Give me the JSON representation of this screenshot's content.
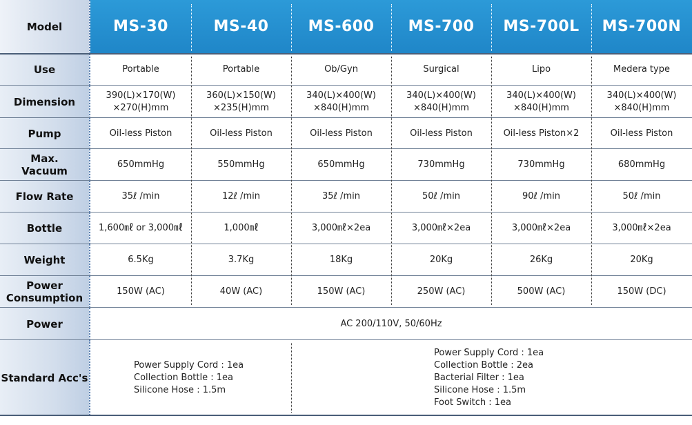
{
  "table": {
    "header_label": "Model",
    "models": [
      "MS-30",
      "MS-40",
      "MS-600",
      "MS-700",
      "MS-700L",
      "MS-700N"
    ],
    "rows": [
      {
        "label": "Use",
        "values": [
          "Portable",
          "Portable",
          "Ob/Gyn",
          "Surgical",
          "Lipo",
          "Medera type"
        ]
      },
      {
        "label": "Dimension",
        "values": [
          "390(L)×170(W)\n×270(H)mm",
          "360(L)×150(W)\n×235(H)mm",
          "340(L)×400(W)\n×840(H)mm",
          "340(L)×400(W)\n×840(H)mm",
          "340(L)×400(W)\n×840(H)mm",
          "340(L)×400(W)\n×840(H)mm"
        ]
      },
      {
        "label": "Pump",
        "values": [
          "Oil-less Piston",
          "Oil-less Piston",
          "Oil-less Piston",
          "Oil-less Piston",
          "Oil-less Piston×2",
          "Oil-less Piston"
        ]
      },
      {
        "label": "Max.\nVacuum",
        "values": [
          "650mmHg",
          "550mmHg",
          "650mmHg",
          "730mmHg",
          "730mmHg",
          "680mmHg"
        ]
      },
      {
        "label": "Flow Rate",
        "values": [
          "35ℓ /min",
          "12ℓ /min",
          "35ℓ /min",
          "50ℓ /min",
          "90ℓ /min",
          "50ℓ /min"
        ]
      },
      {
        "label": "Bottle",
        "values": [
          "1,600㎖ or 3,000㎖",
          "1,000㎖",
          "3,000㎖×2ea",
          "3,000㎖×2ea",
          "3,000㎖×2ea",
          "3,000㎖×2ea"
        ]
      },
      {
        "label": "Weight",
        "values": [
          "6.5Kg",
          "3.7Kg",
          "18Kg",
          "20Kg",
          "26Kg",
          "20Kg"
        ]
      },
      {
        "label": "Power\nConsumption",
        "values": [
          "150W (AC)",
          "40W (AC)",
          "150W (AC)",
          "250W (AC)",
          "500W (AC)",
          "150W (DC)"
        ]
      }
    ],
    "power": {
      "label": "Power",
      "value": "AC 200/110V, 50/60Hz"
    },
    "standard_acc": {
      "label": "Standard Acc's",
      "group1": [
        "Power Supply Cord : 1ea",
        "Collection Bottle : 1ea",
        "Silicone Hose : 1.5m"
      ],
      "group2": [
        "Power Supply Cord : 1ea",
        "Collection Bottle : 2ea",
        "Bacterial Filter : 1ea",
        "Silicone Hose : 1.5m",
        "Foot Switch : 1ea"
      ]
    }
  }
}
